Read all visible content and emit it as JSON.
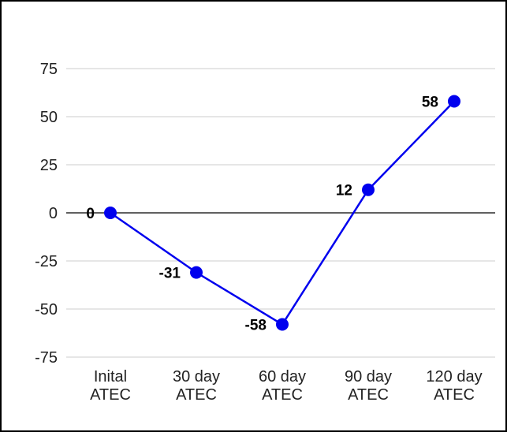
{
  "chart_data": {
    "type": "line",
    "title": "",
    "xlabel": "",
    "ylabel": "",
    "categories": [
      [
        "Inital",
        "ATEC"
      ],
      [
        "30 day",
        "ATEC"
      ],
      [
        "60 day",
        "ATEC"
      ],
      [
        "90  day",
        "ATEC"
      ],
      [
        "120 day",
        "ATEC"
      ]
    ],
    "values": [
      0,
      -31,
      -58,
      12,
      58
    ],
    "data_labels": [
      "0",
      "-31",
      "-58",
      "12",
      "58"
    ],
    "ylim": [
      -75,
      75
    ],
    "yticks": [
      75,
      50,
      25,
      0,
      -25,
      -50,
      -75
    ],
    "ytick_labels": [
      "75",
      "50",
      "25",
      "0",
      "-25",
      "-50",
      "-75"
    ],
    "grid": true,
    "legend": "none",
    "colors": {
      "line": "#0000ee",
      "marker": "#0000ee",
      "grid": "#cccccc",
      "zero_line": "#000000",
      "frame": "#000000"
    }
  }
}
